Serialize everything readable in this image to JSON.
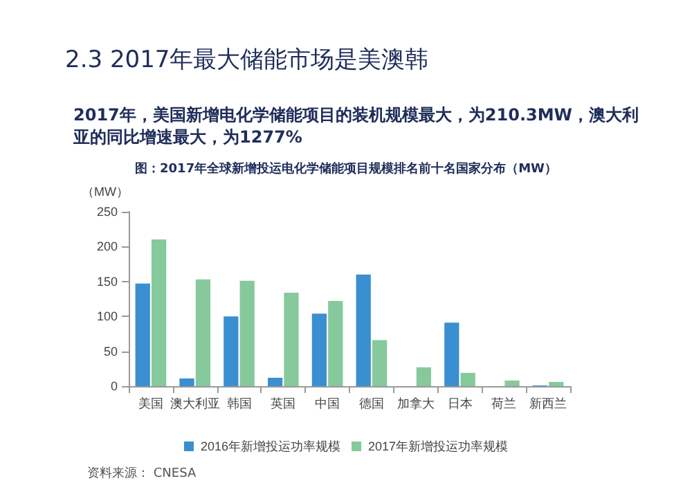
{
  "chart_data": {
    "type": "bar",
    "title": "2.3 2017年最大储能市场是美澳韩",
    "subtitle": "2017年，美国新增电化学储能项目的装机规模最大，为210.3MW，澳大利亚的同比增速最大，为1277%",
    "annotations": [
      "图：2017年全球新增投运电化学储能项目规模排名前十名国家分布（MW）",
      "资料来源： CNESA"
    ],
    "ylabel": "（MW）",
    "categories": [
      "美国",
      "澳大利亚",
      "韩国",
      "英国",
      "中国",
      "德国",
      "加拿大",
      "日本",
      "荷兰",
      "新西兰"
    ],
    "series": [
      {
        "name": "2016年新增投运功率规模",
        "color": "#3a8fd0",
        "values": [
          147,
          11,
          100,
          12,
          104,
          160,
          0,
          91,
          0,
          1
        ]
      },
      {
        "name": "2017年新增投运功率规模",
        "color": "#86c99c",
        "values": [
          210.3,
          153,
          151,
          134,
          122,
          66,
          27,
          19,
          8,
          6
        ]
      }
    ],
    "ylim": [
      0,
      250
    ],
    "yticks": [
      0,
      50,
      100,
      150,
      200,
      250
    ],
    "grid": false,
    "legend": "bottom"
  }
}
